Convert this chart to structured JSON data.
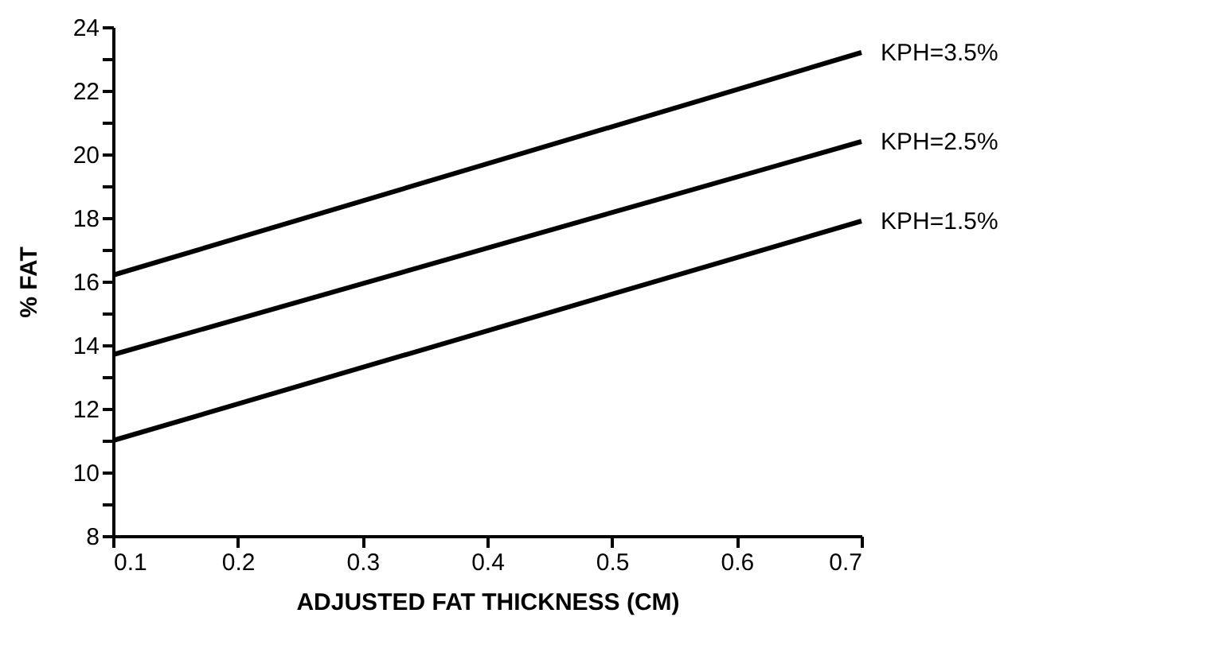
{
  "chart_data": {
    "type": "line",
    "xlabel": "ADJUSTED FAT THICKNESS (CM)",
    "ylabel": "% FAT",
    "x": [
      0.1,
      0.7
    ],
    "series": [
      {
        "name": "KPH=3.5%",
        "color": "#000000",
        "values": [
          16.2,
          23.2
        ]
      },
      {
        "name": "KPH=2.5%",
        "color": "#000000",
        "values": [
          13.7,
          20.4
        ]
      },
      {
        "name": "KPH=1.5%",
        "color": "#000000",
        "values": [
          11.0,
          17.9
        ]
      }
    ],
    "xlim": [
      0.1,
      0.7
    ],
    "xticks": [
      0.1,
      0.2,
      0.3,
      0.4,
      0.5,
      0.6,
      0.7
    ],
    "ylim": [
      8,
      24
    ],
    "yticks": [
      8,
      {
        "value": 9,
        "label": null
      },
      10,
      {
        "value": 11,
        "label": null
      },
      12,
      {
        "value": 13,
        "label": null
      },
      14,
      {
        "value": 15,
        "label": null
      },
      16,
      {
        "value": 17,
        "label": null
      },
      18,
      {
        "value": 19,
        "label": null
      },
      20,
      {
        "value": 21,
        "label": null
      },
      22,
      {
        "value": 23,
        "label": null
      },
      24
    ],
    "grid": false,
    "marker": "none",
    "line_style": "solid"
  }
}
